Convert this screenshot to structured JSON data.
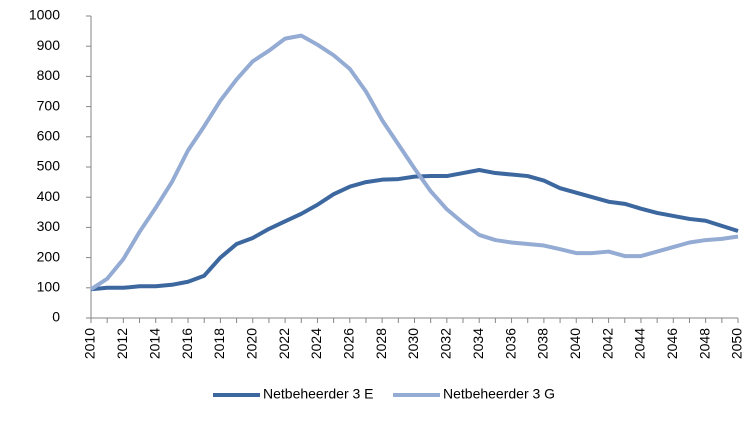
{
  "chart_data": {
    "type": "line",
    "x": [
      2010,
      2011,
      2012,
      2013,
      2014,
      2015,
      2016,
      2017,
      2018,
      2019,
      2020,
      2021,
      2022,
      2023,
      2024,
      2025,
      2026,
      2027,
      2028,
      2029,
      2030,
      2031,
      2032,
      2033,
      2034,
      2035,
      2036,
      2037,
      2038,
      2039,
      2040,
      2041,
      2042,
      2043,
      2044,
      2045,
      2046,
      2047,
      2048,
      2049,
      2050
    ],
    "series": [
      {
        "name": "Netbeheerder 3 E",
        "color": "#3c679f",
        "values": [
          95,
          100,
          100,
          105,
          105,
          110,
          120,
          140,
          200,
          245,
          265,
          295,
          320,
          345,
          375,
          410,
          435,
          450,
          458,
          460,
          468,
          470,
          470,
          480,
          490,
          480,
          475,
          470,
          455,
          430,
          415,
          400,
          385,
          378,
          362,
          348,
          338,
          328,
          322,
          305,
          288
        ]
      },
      {
        "name": "Netbeheerder 3 G",
        "color": "#94abd3",
        "values": [
          95,
          130,
          195,
          285,
          365,
          450,
          555,
          635,
          720,
          790,
          850,
          885,
          925,
          935,
          905,
          870,
          825,
          750,
          655,
          575,
          495,
          420,
          360,
          315,
          275,
          258,
          250,
          245,
          240,
          228,
          215,
          215,
          220,
          205,
          205,
          220,
          235,
          250,
          258,
          262,
          270
        ]
      }
    ],
    "xlim": [
      2010,
      2050
    ],
    "xticks": [
      2010,
      2012,
      2014,
      2016,
      2018,
      2020,
      2022,
      2024,
      2026,
      2028,
      2030,
      2032,
      2034,
      2036,
      2038,
      2040,
      2042,
      2044,
      2046,
      2048,
      2050
    ],
    "ylim": [
      0,
      1000
    ],
    "yticks": [
      0,
      100,
      200,
      300,
      400,
      500,
      600,
      700,
      800,
      900,
      1000
    ],
    "grid": false,
    "legend": "bottom"
  }
}
